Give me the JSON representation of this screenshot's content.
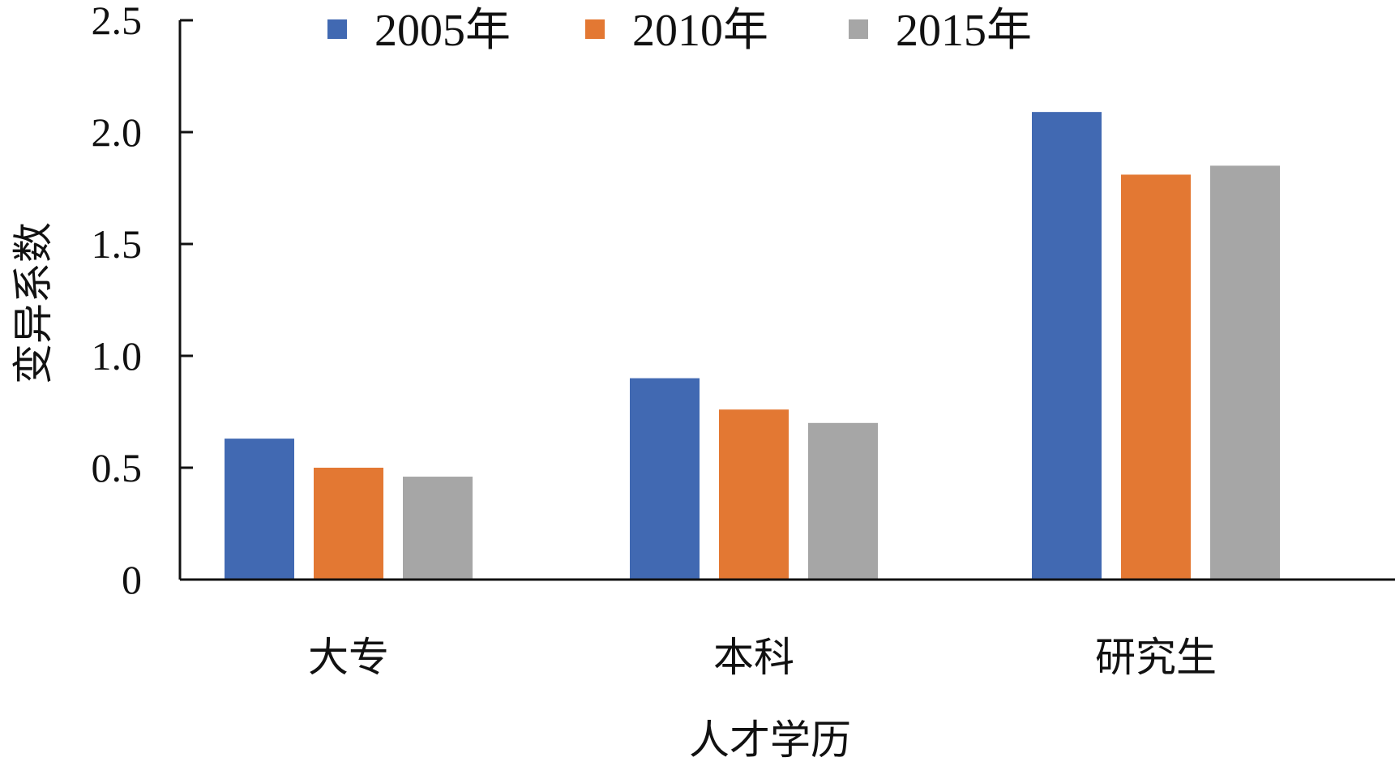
{
  "chart_data": {
    "type": "bar",
    "categories": [
      "大专",
      "本科",
      "研究生"
    ],
    "series": [
      {
        "name": "2005年",
        "color": "#4169B2",
        "values": [
          0.63,
          0.9,
          2.09
        ]
      },
      {
        "name": "2010年",
        "color": "#E37833",
        "values": [
          0.5,
          0.76,
          1.81
        ]
      },
      {
        "name": "2015年",
        "color": "#A6A6A6",
        "values": [
          0.46,
          0.7,
          1.85
        ]
      }
    ],
    "title": "",
    "xlabel": "人才学历",
    "ylabel": "变异系数",
    "ylim": [
      0,
      2.5
    ],
    "yticks": [
      "0",
      "0.5",
      "1.0",
      "1.5",
      "2.0",
      "2.5"
    ],
    "legend_position": "top",
    "grid": false
  }
}
